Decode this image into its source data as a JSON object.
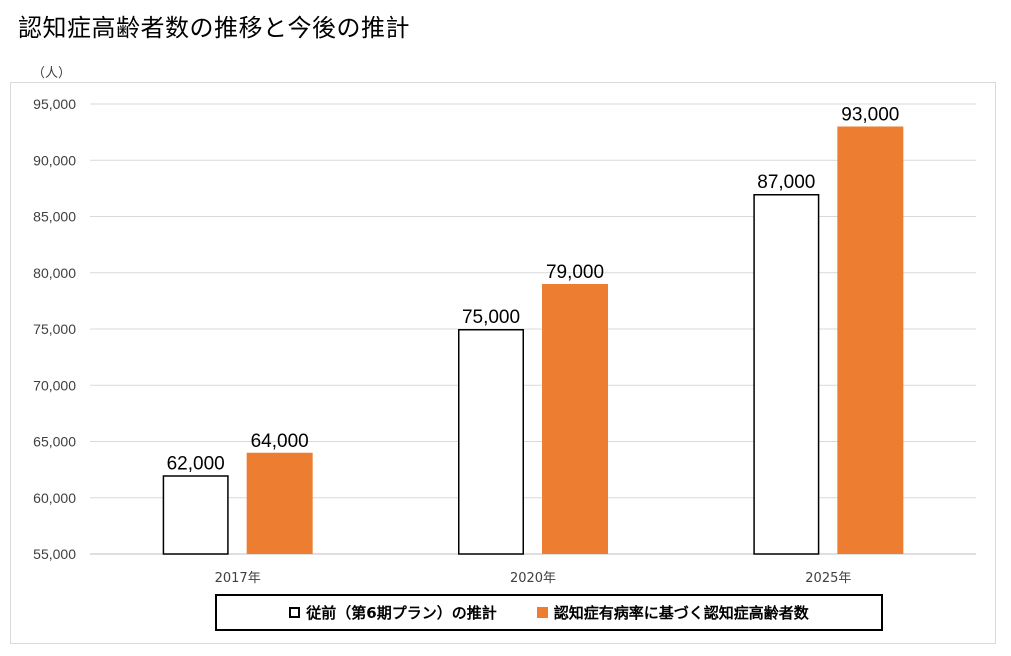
{
  "chart_data": {
    "type": "bar",
    "title": "認知症高齢者数の推移と今後の推計",
    "ylabel": "（人）",
    "xlabel": "",
    "ylim": [
      55000,
      95000
    ],
    "yticks": [
      55000,
      60000,
      65000,
      70000,
      75000,
      80000,
      85000,
      90000,
      95000
    ],
    "ytick_labels": [
      "55,000",
      "60,000",
      "65,000",
      "70,000",
      "75,000",
      "80,000",
      "85,000",
      "90,000",
      "95,000"
    ],
    "categories": [
      "2017年",
      "2020年",
      "2025年"
    ],
    "series": [
      {
        "name": "従前（第6期プラン）の推計",
        "values": [
          62000,
          75000,
          87000
        ],
        "labels": [
          "62,000",
          "75,000",
          "87,000"
        ],
        "color": "#ffffff",
        "edge": "#000000"
      },
      {
        "name": "認知症有病率に基づく認知症高齢者数",
        "values": [
          64000,
          79000,
          93000
        ],
        "labels": [
          "64,000",
          "79,000",
          "93,000"
        ],
        "color": "#ED7D31",
        "edge": "#ED7D31"
      }
    ],
    "grid": true,
    "legend_position": "bottom"
  }
}
